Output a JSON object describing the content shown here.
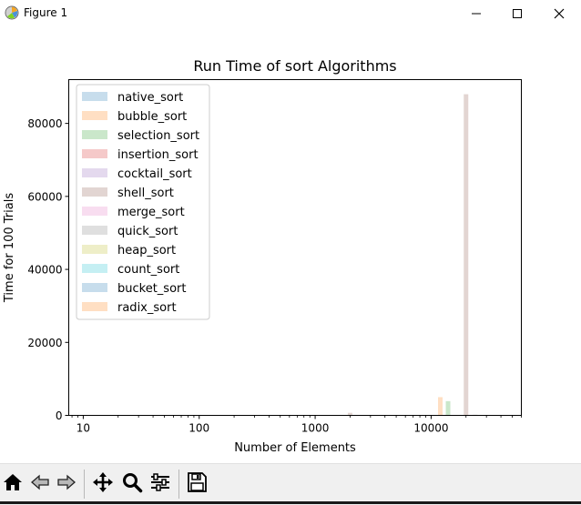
{
  "window": {
    "title": "Figure 1",
    "minimize_icon": "minimize-icon",
    "maximize_icon": "maximize-icon",
    "close_icon": "close-icon"
  },
  "toolbar": {
    "buttons": [
      {
        "name": "home-button",
        "icon": "home-icon"
      },
      {
        "name": "back-button",
        "icon": "back-arrow-icon"
      },
      {
        "name": "forward-button",
        "icon": "forward-arrow-icon"
      },
      {
        "name": "pan-button",
        "icon": "move-icon"
      },
      {
        "name": "zoom-button",
        "icon": "magnifier-icon"
      },
      {
        "name": "configure-subplots-button",
        "icon": "sliders-icon"
      },
      {
        "name": "save-button",
        "icon": "floppy-disk-icon"
      }
    ]
  },
  "chart_data": {
    "type": "bar",
    "title": "Run Time of sort Algorithms",
    "xlabel": "Number of Elements",
    "ylabel": "Time for 100 Trials",
    "xscale": "log",
    "xlim": [
      7.5,
      60000
    ],
    "ylim": [
      0,
      92000
    ],
    "xticks": [
      10,
      100,
      1000,
      10000
    ],
    "xtick_labels": [
      "10",
      "100",
      "1000",
      "10000"
    ],
    "yticks": [
      0,
      20000,
      40000,
      60000,
      80000
    ],
    "ytick_labels": [
      "0",
      "20000",
      "40000",
      "60000",
      "80000"
    ],
    "grid": false,
    "legend_position": "upper left",
    "bar_alpha": 0.25,
    "series": [
      {
        "name": "native_sort",
        "color": "#1f77b4",
        "points": [
          [
            20,
            0
          ],
          [
            200,
            0
          ],
          [
            2000,
            0
          ],
          [
            20000,
            0
          ]
        ]
      },
      {
        "name": "bubble_sort",
        "color": "#ff7f0e",
        "points": [
          [
            12,
            0
          ],
          [
            120,
            5
          ],
          [
            1200,
            80
          ],
          [
            12000,
            5000
          ]
        ]
      },
      {
        "name": "selection_sort",
        "color": "#2ca02c",
        "points": [
          [
            14,
            0
          ],
          [
            140,
            3
          ],
          [
            1400,
            40
          ],
          [
            14000,
            3900
          ]
        ]
      },
      {
        "name": "insertion_sort",
        "color": "#d62728",
        "points": [
          [
            16,
            0
          ],
          [
            160,
            3
          ],
          [
            1600,
            30
          ],
          [
            16000,
            0
          ]
        ]
      },
      {
        "name": "cocktail_sort",
        "color": "#9467bd",
        "points": [
          [
            18,
            0
          ],
          [
            180,
            4
          ],
          [
            1800,
            40
          ],
          [
            18000,
            0
          ]
        ]
      },
      {
        "name": "shell_sort",
        "color": "#8c564b",
        "points": [
          [
            20,
            0
          ],
          [
            200,
            5
          ],
          [
            2000,
            700
          ],
          [
            20000,
            88000
          ]
        ]
      },
      {
        "name": "merge_sort",
        "color": "#e377c2",
        "points": [
          [
            22,
            0
          ],
          [
            220,
            1
          ],
          [
            2200,
            10
          ],
          [
            22000,
            150
          ]
        ]
      },
      {
        "name": "quick_sort",
        "color": "#7f7f7f",
        "points": [
          [
            24,
            0
          ],
          [
            240,
            1
          ],
          [
            2400,
            10
          ],
          [
            24000,
            200
          ]
        ]
      },
      {
        "name": "heap_sort",
        "color": "#bcbd22",
        "points": [
          [
            26,
            0
          ],
          [
            260,
            1
          ],
          [
            2600,
            10
          ],
          [
            26000,
            0
          ]
        ]
      },
      {
        "name": "count_sort",
        "color": "#17becf",
        "points": [
          [
            28,
            0
          ],
          [
            280,
            0
          ],
          [
            2800,
            5
          ],
          [
            28000,
            0
          ]
        ]
      },
      {
        "name": "bucket_sort",
        "color": "#1f77b4",
        "points": [
          [
            30,
            0
          ],
          [
            300,
            0
          ],
          [
            3000,
            5
          ],
          [
            30000,
            0
          ]
        ]
      },
      {
        "name": "radix_sort",
        "color": "#ff7f0e",
        "points": [
          [
            32,
            0
          ],
          [
            320,
            0
          ],
          [
            3200,
            5
          ],
          [
            32000,
            0
          ]
        ]
      }
    ]
  }
}
